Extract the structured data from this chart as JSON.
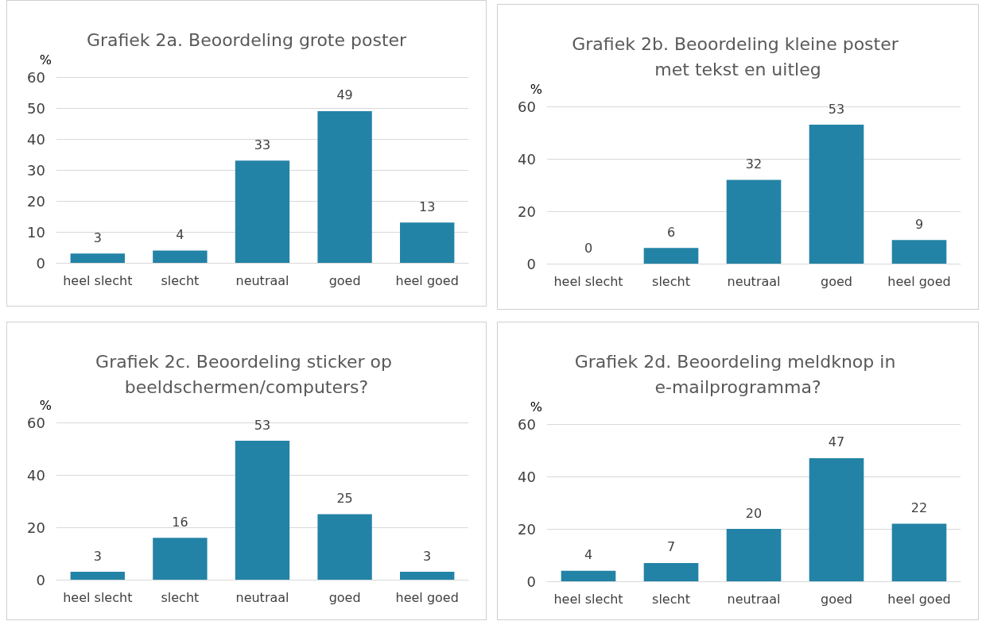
{
  "chart_data": [
    {
      "type": "bar",
      "title": "Grafiek 2a. Beoordeling grote poster",
      "ylabel": "%",
      "categories": [
        "heel slecht",
        "slecht",
        "neutraal",
        "goed",
        "heel goed"
      ],
      "values": [
        3,
        4,
        33,
        49,
        13
      ],
      "color": "#2383a6",
      "ylim": [
        0,
        60
      ],
      "yticks": [
        0,
        10,
        20,
        30,
        40,
        50,
        60
      ],
      "grid": "y",
      "data_labels": true
    },
    {
      "type": "bar",
      "title": "Grafiek 2b. Beoordeling kleine poster met tekst en uitleg",
      "ylabel": "%",
      "categories": [
        "heel slecht",
        "slecht",
        "neutraal",
        "goed",
        "heel goed"
      ],
      "values": [
        0,
        6,
        32,
        53,
        9
      ],
      "color": "#2383a6",
      "ylim": [
        0,
        60
      ],
      "yticks": [
        0,
        20,
        40,
        60
      ],
      "grid": "y",
      "data_labels": true
    },
    {
      "type": "bar",
      "title": "Grafiek 2c. Beoordeling sticker op beeldschermen/computers?",
      "ylabel": "%",
      "categories": [
        "heel slecht",
        "slecht",
        "neutraal",
        "goed",
        "heel goed"
      ],
      "values": [
        3,
        16,
        53,
        25,
        3
      ],
      "color": "#2383a6",
      "ylim": [
        0,
        60
      ],
      "yticks": [
        0,
        20,
        40,
        60
      ],
      "grid": "y",
      "data_labels": true
    },
    {
      "type": "bar",
      "title": "Grafiek 2d. Beoordeling meldknop in e-mailprogramma?",
      "ylabel": "%",
      "categories": [
        "heel slecht",
        "slecht",
        "neutraal",
        "goed",
        "heel goed"
      ],
      "values": [
        4,
        7,
        20,
        47,
        22
      ],
      "color": "#2383a6",
      "ylim": [
        0,
        60
      ],
      "yticks": [
        0,
        20,
        40,
        60
      ],
      "grid": "y",
      "data_labels": true
    }
  ]
}
